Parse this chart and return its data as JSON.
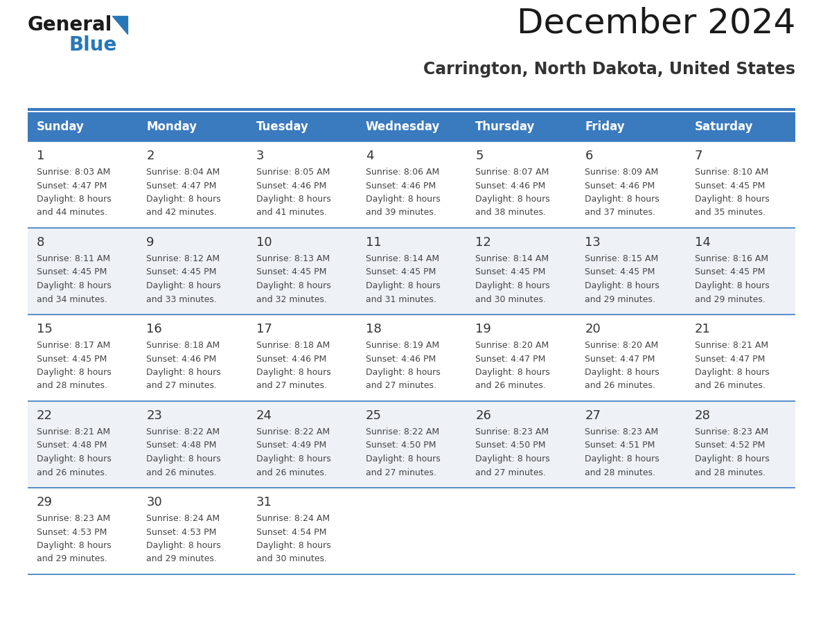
{
  "title": "December 2024",
  "subtitle": "Carrington, North Dakota, United States",
  "header_color": "#3a7abf",
  "header_text_color": "#ffffff",
  "cell_bg_light": "#eef2f7",
  "cell_bg_white": "#ffffff",
  "border_color": "#3a7abf",
  "day_names": [
    "Sunday",
    "Monday",
    "Tuesday",
    "Wednesday",
    "Thursday",
    "Friday",
    "Saturday"
  ],
  "title_color": "#1a1a1a",
  "subtitle_color": "#333333",
  "day_number_color": "#333333",
  "cell_text_color": "#444444",
  "logo_general_color": "#1a1a1a",
  "logo_blue_color": "#2878b8",
  "weeks": [
    [
      {
        "day": 1,
        "sunrise": "8:03 AM",
        "sunset": "4:47 PM",
        "daylight": "8 hours and 44 minutes."
      },
      {
        "day": 2,
        "sunrise": "8:04 AM",
        "sunset": "4:47 PM",
        "daylight": "8 hours and 42 minutes."
      },
      {
        "day": 3,
        "sunrise": "8:05 AM",
        "sunset": "4:46 PM",
        "daylight": "8 hours and 41 minutes."
      },
      {
        "day": 4,
        "sunrise": "8:06 AM",
        "sunset": "4:46 PM",
        "daylight": "8 hours and 39 minutes."
      },
      {
        "day": 5,
        "sunrise": "8:07 AM",
        "sunset": "4:46 PM",
        "daylight": "8 hours and 38 minutes."
      },
      {
        "day": 6,
        "sunrise": "8:09 AM",
        "sunset": "4:46 PM",
        "daylight": "8 hours and 37 minutes."
      },
      {
        "day": 7,
        "sunrise": "8:10 AM",
        "sunset": "4:45 PM",
        "daylight": "8 hours and 35 minutes."
      }
    ],
    [
      {
        "day": 8,
        "sunrise": "8:11 AM",
        "sunset": "4:45 PM",
        "daylight": "8 hours and 34 minutes."
      },
      {
        "day": 9,
        "sunrise": "8:12 AM",
        "sunset": "4:45 PM",
        "daylight": "8 hours and 33 minutes."
      },
      {
        "day": 10,
        "sunrise": "8:13 AM",
        "sunset": "4:45 PM",
        "daylight": "8 hours and 32 minutes."
      },
      {
        "day": 11,
        "sunrise": "8:14 AM",
        "sunset": "4:45 PM",
        "daylight": "8 hours and 31 minutes."
      },
      {
        "day": 12,
        "sunrise": "8:14 AM",
        "sunset": "4:45 PM",
        "daylight": "8 hours and 30 minutes."
      },
      {
        "day": 13,
        "sunrise": "8:15 AM",
        "sunset": "4:45 PM",
        "daylight": "8 hours and 29 minutes."
      },
      {
        "day": 14,
        "sunrise": "8:16 AM",
        "sunset": "4:45 PM",
        "daylight": "8 hours and 29 minutes."
      }
    ],
    [
      {
        "day": 15,
        "sunrise": "8:17 AM",
        "sunset": "4:45 PM",
        "daylight": "8 hours and 28 minutes."
      },
      {
        "day": 16,
        "sunrise": "8:18 AM",
        "sunset": "4:46 PM",
        "daylight": "8 hours and 27 minutes."
      },
      {
        "day": 17,
        "sunrise": "8:18 AM",
        "sunset": "4:46 PM",
        "daylight": "8 hours and 27 minutes."
      },
      {
        "day": 18,
        "sunrise": "8:19 AM",
        "sunset": "4:46 PM",
        "daylight": "8 hours and 27 minutes."
      },
      {
        "day": 19,
        "sunrise": "8:20 AM",
        "sunset": "4:47 PM",
        "daylight": "8 hours and 26 minutes."
      },
      {
        "day": 20,
        "sunrise": "8:20 AM",
        "sunset": "4:47 PM",
        "daylight": "8 hours and 26 minutes."
      },
      {
        "day": 21,
        "sunrise": "8:21 AM",
        "sunset": "4:47 PM",
        "daylight": "8 hours and 26 minutes."
      }
    ],
    [
      {
        "day": 22,
        "sunrise": "8:21 AM",
        "sunset": "4:48 PM",
        "daylight": "8 hours and 26 minutes."
      },
      {
        "day": 23,
        "sunrise": "8:22 AM",
        "sunset": "4:48 PM",
        "daylight": "8 hours and 26 minutes."
      },
      {
        "day": 24,
        "sunrise": "8:22 AM",
        "sunset": "4:49 PM",
        "daylight": "8 hours and 26 minutes."
      },
      {
        "day": 25,
        "sunrise": "8:22 AM",
        "sunset": "4:50 PM",
        "daylight": "8 hours and 27 minutes."
      },
      {
        "day": 26,
        "sunrise": "8:23 AM",
        "sunset": "4:50 PM",
        "daylight": "8 hours and 27 minutes."
      },
      {
        "day": 27,
        "sunrise": "8:23 AM",
        "sunset": "4:51 PM",
        "daylight": "8 hours and 28 minutes."
      },
      {
        "day": 28,
        "sunrise": "8:23 AM",
        "sunset": "4:52 PM",
        "daylight": "8 hours and 28 minutes."
      }
    ],
    [
      {
        "day": 29,
        "sunrise": "8:23 AM",
        "sunset": "4:53 PM",
        "daylight": "8 hours and 29 minutes."
      },
      {
        "day": 30,
        "sunrise": "8:24 AM",
        "sunset": "4:53 PM",
        "daylight": "8 hours and 29 minutes."
      },
      {
        "day": 31,
        "sunrise": "8:24 AM",
        "sunset": "4:54 PM",
        "daylight": "8 hours and 30 minutes."
      },
      null,
      null,
      null,
      null
    ]
  ]
}
